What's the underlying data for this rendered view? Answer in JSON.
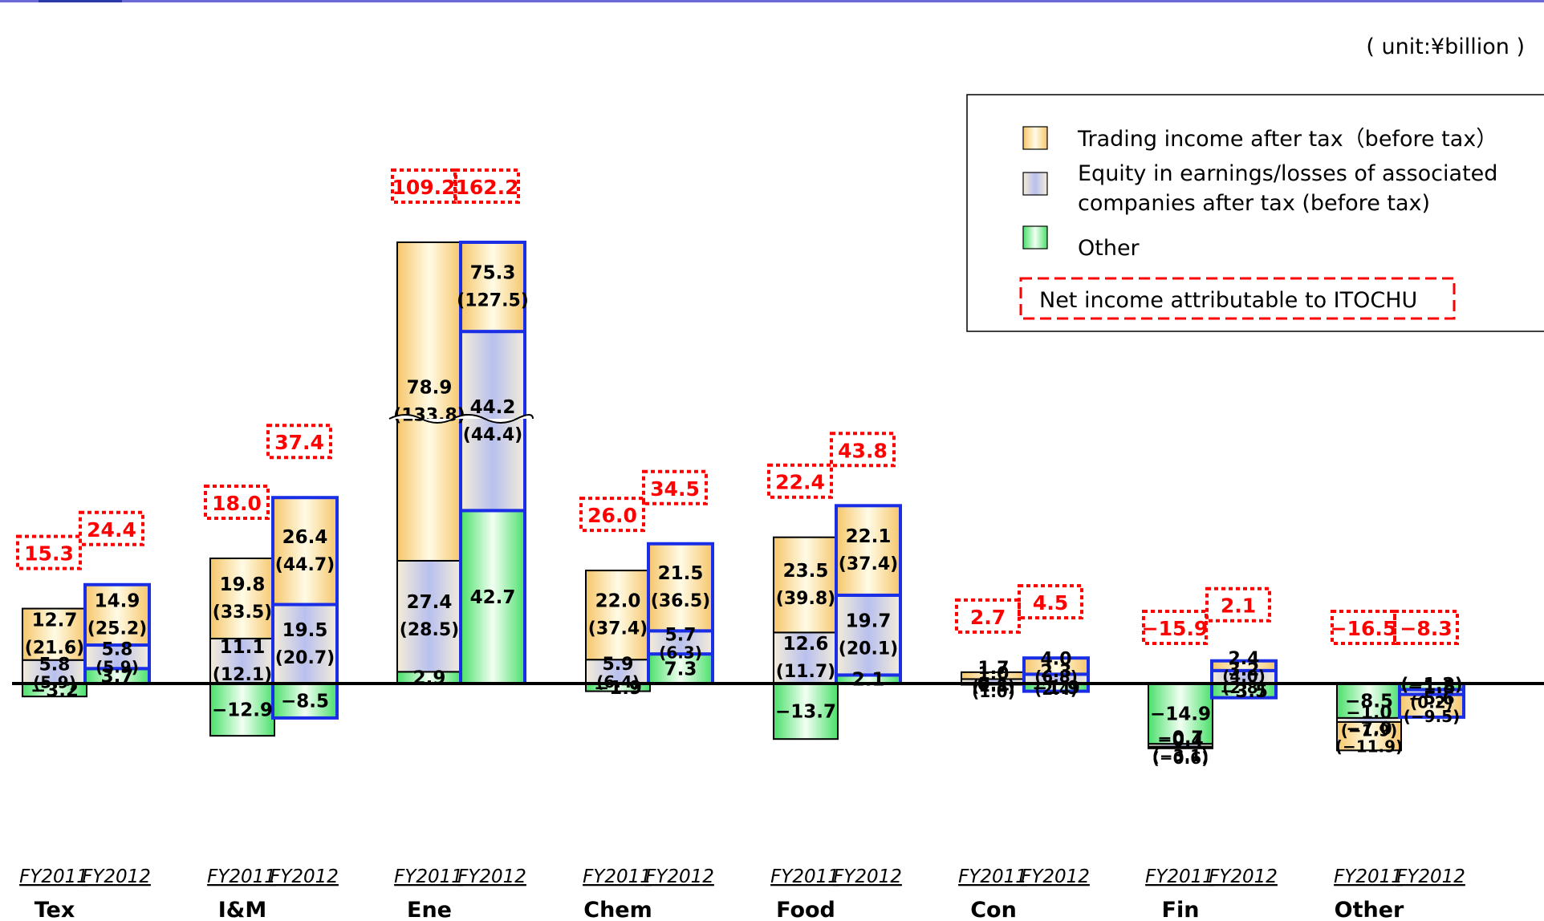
{
  "chart_data": {
    "type": "bar",
    "subtype": "stacked-bar-by-segment",
    "unit_note": "( unit:¥billion )",
    "colors": {
      "trading": "#f6c66a",
      "equity": "#b8c0ee",
      "other": "#49e06a",
      "fy2012_outline": "#1a2ee6",
      "fy2011_outline": "#000000",
      "net_box": "#ff0000",
      "top_bar": "#6a6ad6"
    },
    "legend": [
      {
        "key": "trading",
        "lines": [
          "Trading income after tax（before tax）"
        ]
      },
      {
        "key": "equity",
        "lines": [
          "Equity in earnings/losses of associated",
          "companies after tax (before tax)"
        ]
      },
      {
        "key": "other",
        "lines": [
          "Other"
        ]
      },
      {
        "key": "net",
        "lines": [
          "Net income attributable to ITOCHU"
        ]
      }
    ],
    "years": [
      "FY2011",
      "FY2012"
    ],
    "segments": [
      {
        "name": "Tex",
        "bars": [
          {
            "year": "FY2011",
            "net": "15.3",
            "parts": [
              {
                "k": "trading",
                "v": 12.7,
                "after": "12.7",
                "before": "(21.6)"
              },
              {
                "k": "equity",
                "v": 5.8,
                "after": "5.8",
                "before": "(5.9)"
              },
              {
                "k": "other",
                "v": -3.2,
                "after": "−3.2"
              }
            ]
          },
          {
            "year": "FY2012",
            "net": "24.4",
            "parts": [
              {
                "k": "trading",
                "v": 14.9,
                "after": "14.9",
                "before": "(25.2)"
              },
              {
                "k": "equity",
                "v": 5.8,
                "after": "5.8",
                "before": "(5.9)"
              },
              {
                "k": "other",
                "v": 3.7,
                "after": "3.7"
              }
            ]
          }
        ]
      },
      {
        "name": "I&M",
        "bars": [
          {
            "year": "FY2011",
            "net": "18.0",
            "parts": [
              {
                "k": "trading",
                "v": 19.8,
                "after": "19.8",
                "before": "(33.5)"
              },
              {
                "k": "equity",
                "v": 11.1,
                "after": "11.1",
                "before": "(12.1)"
              },
              {
                "k": "other",
                "v": -12.9,
                "after": "−12.9"
              }
            ]
          },
          {
            "year": "FY2012",
            "net": "37.4",
            "parts": [
              {
                "k": "trading",
                "v": 26.4,
                "after": "26.4",
                "before": "(44.7)"
              },
              {
                "k": "equity",
                "v": 19.5,
                "after": "19.5",
                "before": "(20.7)"
              },
              {
                "k": "other",
                "v": -8.5,
                "after": "−8.5"
              }
            ]
          }
        ]
      },
      {
        "name": "Ene",
        "bars": [
          {
            "year": "FY2011",
            "net": "109.2",
            "parts": [
              {
                "k": "trading",
                "v": 78.9,
                "after": "78.9",
                "before": "(133.8)"
              },
              {
                "k": "equity",
                "v": 27.4,
                "after": "27.4",
                "before": "(28.5)"
              },
              {
                "k": "other",
                "v": 2.9,
                "after": "2.9"
              }
            ]
          },
          {
            "year": "FY2012",
            "net": "162.2",
            "parts": [
              {
                "k": "trading",
                "v": 75.3,
                "after": "75.3",
                "before": "(127.5)"
              },
              {
                "k": "equity",
                "v": 44.2,
                "after": "44.2",
                "before": "(44.4)"
              },
              {
                "k": "other",
                "v": 42.7,
                "after": "42.7"
              }
            ]
          }
        ]
      },
      {
        "name": "Chem",
        "bars": [
          {
            "year": "FY2011",
            "net": "26.0",
            "parts": [
              {
                "k": "trading",
                "v": 22.0,
                "after": "22.0",
                "before": "(37.4)"
              },
              {
                "k": "equity",
                "v": 5.9,
                "after": "5.9",
                "before": "(6.4)"
              },
              {
                "k": "other",
                "v": -1.9,
                "after": "−1.9"
              }
            ]
          },
          {
            "year": "FY2012",
            "net": "34.5",
            "parts": [
              {
                "k": "trading",
                "v": 21.5,
                "after": "21.5",
                "before": "(36.5)"
              },
              {
                "k": "equity",
                "v": 5.7,
                "after": "5.7",
                "before": "(6.3)"
              },
              {
                "k": "other",
                "v": 7.3,
                "after": "7.3"
              }
            ]
          }
        ]
      },
      {
        "name": "Food",
        "bars": [
          {
            "year": "FY2011",
            "net": "22.4",
            "parts": [
              {
                "k": "trading",
                "v": 23.5,
                "after": "23.5",
                "before": "(39.8)"
              },
              {
                "k": "equity",
                "v": 12.6,
                "after": "12.6",
                "before": "(11.7)"
              },
              {
                "k": "other",
                "v": -13.7,
                "after": "−13.7"
              }
            ]
          },
          {
            "year": "FY2012",
            "net": "43.8",
            "parts": [
              {
                "k": "trading",
                "v": 22.1,
                "after": "22.1",
                "before": "(37.4)"
              },
              {
                "k": "equity",
                "v": 19.7,
                "after": "19.7",
                "before": "(20.1)"
              },
              {
                "k": "other",
                "v": 2.1,
                "after": "2.1"
              }
            ]
          }
        ]
      },
      {
        "name": "Con",
        "bars": [
          {
            "year": "FY2011",
            "net": "2.7",
            "parts": [
              {
                "k": "trading",
                "v": 1.7,
                "after": "1.7",
                "before": "(2.8)"
              },
              {
                "k": "equity",
                "v": 1.0,
                "after": "1.0",
                "before": "(1.0)"
              },
              {
                "k": "other",
                "v": 0.1,
                "after": "0.1"
              }
            ]
          },
          {
            "year": "FY2012",
            "net": "4.5",
            "parts": [
              {
                "k": "trading",
                "v": 4.0,
                "after": "4.0",
                "before": "(6.8)"
              },
              {
                "k": "equity",
                "v": 2.3,
                "after": "2.3",
                "before": "(2.4)"
              },
              {
                "k": "other",
                "v": -1.9,
                "after": "−1.9"
              }
            ]
          }
        ]
      },
      {
        "name": "Fin",
        "bars": [
          {
            "year": "FY2011",
            "net": "−15.9",
            "parts": [
              {
                "k": "trading",
                "v": -0.4,
                "after": "−0.4",
                "before": "(−0.6)"
              },
              {
                "k": "equity",
                "v": -0.7,
                "after": "−0.7",
                "before": "(−3.1)"
              },
              {
                "k": "other",
                "v": -14.9,
                "after": "−14.9"
              }
            ]
          },
          {
            "year": "FY2012",
            "net": "2.1",
            "parts": [
              {
                "k": "trading",
                "v": 2.4,
                "after": "2.4",
                "before": "(4.0)"
              },
              {
                "k": "equity",
                "v": 3.2,
                "after": "3.2",
                "before": "(2.8)"
              },
              {
                "k": "other",
                "v": -3.5,
                "after": "−3.5"
              }
            ]
          }
        ]
      },
      {
        "name": "Other",
        "bars": [
          {
            "year": "FY2011",
            "net": "−16.5",
            "parts": [
              {
                "k": "trading",
                "v": -7.0,
                "after": "−7.0",
                "before": "(−11.9)"
              },
              {
                "k": "equity",
                "v": -1.0,
                "after": "−1.0",
                "before": "(−1.9)"
              },
              {
                "k": "other",
                "v": -8.5,
                "after": "−8.5"
              }
            ]
          },
          {
            "year": "FY2012",
            "net": "−8.3",
            "parts": [
              {
                "k": "trading",
                "v": -5.6,
                "after": "−5.6",
                "before": "(−9.5)"
              },
              {
                "k": "equity",
                "v": -1.2,
                "after": "(−1.2)",
                "before": "(0.2)"
              },
              {
                "k": "other",
                "v": -1.5,
                "after": "−1.5"
              }
            ]
          }
        ]
      }
    ]
  }
}
